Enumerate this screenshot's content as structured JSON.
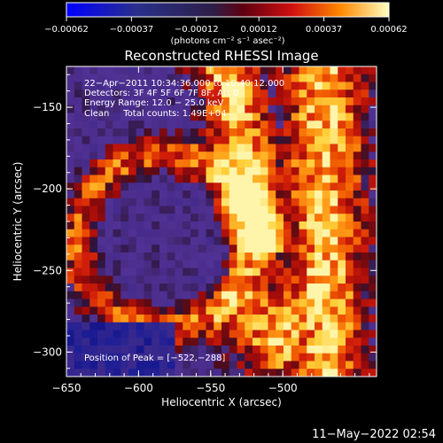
{
  "chart_data": {
    "type": "heatmap",
    "title": "Reconstructed RHESSI Image",
    "xlabel": "Heliocentric X (arcsec)",
    "ylabel": "Heliocentric Y (arcsec)",
    "xlim": [
      -650,
      -435
    ],
    "ylim": [
      -315,
      -125
    ],
    "x_ticks": [
      -650,
      -600,
      -550,
      -500
    ],
    "x_tick_labels": [
      "−650",
      "−600",
      "−550",
      "−500"
    ],
    "y_ticks": [
      -150,
      -200,
      -250,
      -300
    ],
    "y_tick_labels": [
      "−150",
      "−200",
      "−250",
      "−300"
    ],
    "colorbar": {
      "range": [
        -0.00062,
        0.00062
      ],
      "ticks": [
        -0.00062,
        -0.00037,
        -0.00012,
        0.00012,
        0.00037,
        0.00062
      ],
      "tick_labels": [
        "−0.00062",
        "−0.00037",
        "−0.00012",
        "0.00012",
        "0.00037",
        "0.00062"
      ],
      "units_label": "(photons cm⁻² s⁻¹ asec⁻²)"
    },
    "annotations": {
      "time_range": "22−Apr−2011 10:34:36.000 to 10:40:12.000",
      "detectors": "Detectors: 3F 4F 5F 6F 7F 8F, Att 0",
      "energy": "Energy Range: 12.0 − 25.0 keV",
      "clean_total": "Clean     Total counts: 1.49E+04",
      "peak": "Position of Peak = [−522,−288]"
    },
    "peak_position": [
      -522,
      -288
    ],
    "grid": false,
    "colors": {
      "cmap_low": "#0000ff",
      "cmap_mid_low": "#2a2f8a",
      "cmap_zero": "#2d1f4a",
      "cmap_mid_high": "#c01010",
      "cmap_orange": "#ff8800",
      "cmap_high": "#ffffc0",
      "axes_color": "#ffffff",
      "background": "#000000"
    }
  },
  "footer": {
    "date": "11−May−2022 02:54"
  }
}
